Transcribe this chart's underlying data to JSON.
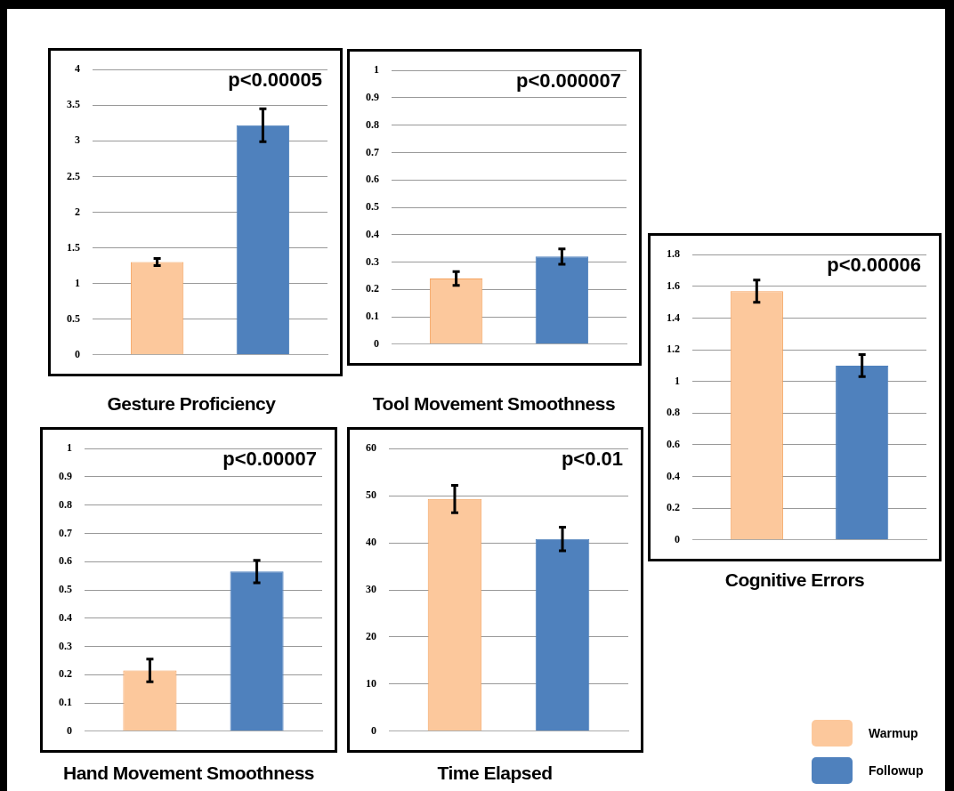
{
  "chart_data": [
    {
      "type": "bar",
      "title": "Gesture Proficiency",
      "categories": [
        null
      ],
      "series": [
        {
          "color": "#fcc89c",
          "values": [
            1.3
          ],
          "errors": [
            0.05
          ]
        },
        {
          "color": "#4f81bd",
          "values": [
            3.22
          ],
          "errors": [
            0.23
          ]
        }
      ],
      "ylim": [
        0,
        4
      ],
      "yticks": [
        0,
        0.5,
        1,
        1.5,
        2,
        2.5,
        3,
        3.5,
        4
      ],
      "grid": "y",
      "annotations": [
        "p<0.00005"
      ]
    },
    {
      "type": "bar",
      "title": "Tool Movement Smoothness",
      "categories": [
        null
      ],
      "series": [
        {
          "color": "#fcc89c",
          "values": [
            0.24
          ],
          "errors": [
            0.025
          ]
        },
        {
          "color": "#4f81bd",
          "values": [
            0.32
          ],
          "errors": [
            0.028
          ]
        }
      ],
      "ylim": [
        0,
        1
      ],
      "yticks": [
        0,
        0.1,
        0.2,
        0.3,
        0.4,
        0.5,
        0.6,
        0.7,
        0.8,
        0.9,
        1
      ],
      "grid": "y",
      "annotations": [
        "p<0.000007"
      ]
    },
    {
      "type": "bar",
      "title": "Cognitive Errors",
      "categories": [
        null
      ],
      "series": [
        {
          "name": "Warmup",
          "color": "#fcc89c",
          "values": [
            1.57
          ],
          "errors": [
            0.07
          ]
        },
        {
          "name": "Followup",
          "color": "#4f81bd",
          "values": [
            1.1
          ],
          "errors": [
            0.07
          ]
        }
      ],
      "ylim": [
        0,
        1.8
      ],
      "yticks": [
        0,
        0.2,
        0.4,
        0.6,
        0.8,
        1,
        1.2,
        1.4,
        1.6,
        1.8
      ],
      "grid": "y",
      "legend": "bottom right",
      "annotations": [
        "p<0.00006"
      ]
    },
    {
      "type": "bar",
      "title": "Hand Movement Smoothness",
      "categories": [
        null
      ],
      "series": [
        {
          "color": "#fcc89c",
          "values": [
            0.215
          ],
          "errors": [
            0.04
          ]
        },
        {
          "color": "#4f81bd",
          "values": [
            0.565
          ],
          "errors": [
            0.04
          ]
        }
      ],
      "ylim": [
        0,
        1
      ],
      "yticks": [
        0,
        0.1,
        0.2,
        0.3,
        0.4,
        0.5,
        0.6,
        0.7,
        0.8,
        0.9,
        1
      ],
      "grid": "y",
      "annotations": [
        "p<0.00007"
      ]
    },
    {
      "type": "bar",
      "title": "Time Elapsed",
      "categories": [
        null
      ],
      "series": [
        {
          "color": "#fcc89c",
          "values": [
            49.3
          ],
          "errors": [
            2.9
          ]
        },
        {
          "color": "#4f81bd",
          "values": [
            40.8
          ],
          "errors": [
            2.5
          ]
        }
      ],
      "ylim": [
        0,
        60
      ],
      "yticks": [
        0,
        10,
        20,
        30,
        40,
        50,
        60
      ],
      "grid": "y",
      "annotations": [
        "p<0.01"
      ]
    }
  ]
}
